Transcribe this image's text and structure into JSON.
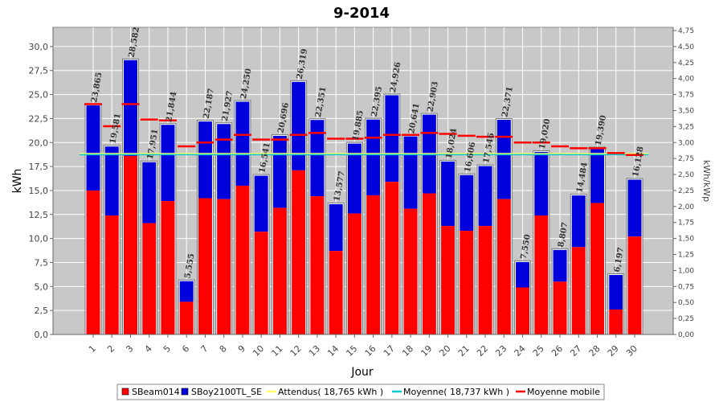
{
  "chart_data": {
    "type": "bar",
    "title": "9-2014",
    "xlabel": "Jour",
    "ylabel": "kWh",
    "y2label": "kWh/kWp",
    "ylim": [
      0,
      32
    ],
    "y2lim": [
      0,
      4.8
    ],
    "yticks": [
      "0,0",
      "2,5",
      "5,0",
      "7,5",
      "10,0",
      "12,5",
      "15,0",
      "17,5",
      "20,0",
      "22,5",
      "25,0",
      "27,5",
      "30,0"
    ],
    "y2ticks": [
      "0,00",
      "0,25",
      "0,50",
      "0,75",
      "1,00",
      "1,25",
      "1,50",
      "1,75",
      "2,00",
      "2,25",
      "2,50",
      "2,75",
      "3,00",
      "3,25",
      "3,50",
      "3,75",
      "4,00",
      "4,25",
      "4,50",
      "4,75"
    ],
    "categories": [
      "1",
      "2",
      "3",
      "4",
      "5",
      "6",
      "7",
      "8",
      "9",
      "10",
      "11",
      "12",
      "13",
      "14",
      "15",
      "16",
      "17",
      "18",
      "19",
      "20",
      "21",
      "22",
      "23",
      "24",
      "25",
      "26",
      "27",
      "28",
      "29",
      "30"
    ],
    "series": [
      {
        "name": "SBeam014",
        "color": "#ff0000",
        "values": [
          15.0,
          12.4,
          18.6,
          11.6,
          13.9,
          3.4,
          14.2,
          14.1,
          15.5,
          10.7,
          13.2,
          17.1,
          14.4,
          8.7,
          12.6,
          14.5,
          15.9,
          13.1,
          14.7,
          11.3,
          10.8,
          11.3,
          14.1,
          4.9,
          12.4,
          5.5,
          9.1,
          13.7,
          2.6,
          10.2
        ]
      },
      {
        "name": "SBoy2100TL_SE",
        "color": "#0000dd",
        "values": [
          8.865,
          7.181,
          9.982,
          6.351,
          7.944,
          2.155,
          7.987,
          7.827,
          8.75,
          5.841,
          7.496,
          9.219,
          7.951,
          4.877,
          7.285,
          7.895,
          9.026,
          7.541,
          8.203,
          6.724,
          5.806,
          6.246,
          8.271,
          2.65,
          6.62,
          3.307,
          5.384,
          5.69,
          3.597,
          5.928
        ]
      }
    ],
    "totals": [
      "23,865",
      "19,581",
      "28,582",
      "17,951",
      "21,844",
      "5,555",
      "22,187",
      "21,927",
      "24,250",
      "16,541",
      "20,696",
      "26,319",
      "22,351",
      "13,577",
      "19,885",
      "22,395",
      "24,926",
      "20,641",
      "22,903",
      "18,024",
      "16,606",
      "17,546",
      "22,371",
      "7,550",
      "19,020",
      "8,807",
      "14,484",
      "19,390",
      "6,197",
      "16,128"
    ],
    "moving_average": [
      24.0,
      21.7,
      24.0,
      22.4,
      22.3,
      19.6,
      20.0,
      20.3,
      20.8,
      20.3,
      20.3,
      20.8,
      21.0,
      20.4,
      20.4,
      20.5,
      20.8,
      20.8,
      21.0,
      20.9,
      20.7,
      20.6,
      20.6,
      20.0,
      20.0,
      19.6,
      19.4,
      19.4,
      18.9,
      18.7
    ],
    "expected": {
      "label": "Attendus( 18,765 kWh )",
      "value": 18.765,
      "color": "#ffff66"
    },
    "mean": {
      "label": "Moyenne( 18,737 kWh )",
      "value": 18.737,
      "color": "#00cccc"
    },
    "moving_label": "Moyenne mobile",
    "moving_color": "#ff0000",
    "grid": true,
    "legend_placement": "bottom"
  }
}
